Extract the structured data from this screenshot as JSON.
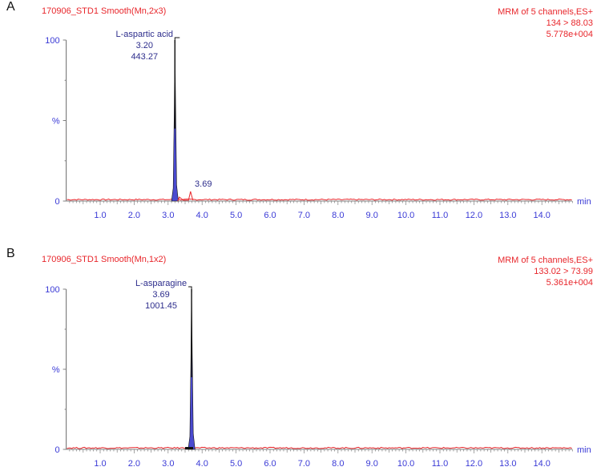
{
  "panels": [
    {
      "letter": "A",
      "title": "170906_STD1 Smooth(Mn,2x3)",
      "info": [
        "MRM of 5 channels,ES+",
        "134 > 88.03",
        "5.778e+004"
      ],
      "peak": {
        "name": "L-aspartic acid",
        "rt": "3.20",
        "area": "443.27"
      },
      "minor_peak_label": "3.69"
    },
    {
      "letter": "B",
      "title": "170906_STD1 Smooth(Mn,1x2)",
      "info": [
        "MRM of 5 channels,ES+",
        "133.02 > 73.99",
        "5.361e+004"
      ],
      "peak": {
        "name": "L-asparagine",
        "rt": "3.69",
        "area": "1001.45"
      }
    }
  ],
  "axis": {
    "y_labels": [
      "100",
      "%",
      "0"
    ],
    "x_ticks": [
      "1.0",
      "2.0",
      "3.0",
      "4.0",
      "5.0",
      "6.0",
      "7.0",
      "8.0",
      "9.0",
      "10.0",
      "11.0",
      "12.0",
      "13.0",
      "14.0"
    ],
    "x_unit": "min"
  },
  "colors": {
    "trace": "#e8262b",
    "peak_fill": "#4a4ad0",
    "axis_text": "#3a3ad6",
    "axis_line": "#808080"
  },
  "chart_data": [
    {
      "type": "line",
      "title": "170906_STD1 Smooth(Mn,2x3) — MRM of 5 channels,ES+ 134 > 88.03 (5.778e+004)",
      "xlabel": "min",
      "ylabel": "%",
      "xlim": [
        0,
        14.9
      ],
      "ylim": [
        0,
        100
      ],
      "x_ticks": [
        1,
        2,
        3,
        4,
        5,
        6,
        7,
        8,
        9,
        10,
        11,
        12,
        13,
        14
      ],
      "series": [
        {
          "name": "L-aspartic acid trace",
          "x": [
            0,
            3.0,
            3.12,
            3.2,
            3.28,
            3.4,
            3.6,
            3.69,
            3.75,
            4.0,
            11.0,
            14.9
          ],
          "y": [
            0,
            0,
            3,
            100,
            4,
            1,
            0,
            5,
            0,
            0,
            1,
            0
          ]
        }
      ],
      "annotations": [
        {
          "label": "L-aspartic acid",
          "rt": 3.2,
          "area": 443.27
        },
        {
          "label": "3.69",
          "rt": 3.69
        }
      ]
    },
    {
      "type": "line",
      "title": "170906_STD1 Smooth(Mn,1x2) — MRM of 5 channels,ES+ 133.02 > 73.99 (5.361e+004)",
      "xlabel": "min",
      "ylabel": "%",
      "xlim": [
        0,
        14.9
      ],
      "ylim": [
        0,
        100
      ],
      "x_ticks": [
        1,
        2,
        3,
        4,
        5,
        6,
        7,
        8,
        9,
        10,
        11,
        12,
        13,
        14
      ],
      "series": [
        {
          "name": "L-asparagine trace",
          "x": [
            0,
            3.5,
            3.62,
            3.69,
            3.76,
            3.85,
            14.9
          ],
          "y": [
            0,
            0,
            2,
            100,
            3,
            0,
            0
          ]
        }
      ],
      "annotations": [
        {
          "label": "L-asparagine",
          "rt": 3.69,
          "area": 1001.45
        }
      ]
    }
  ]
}
